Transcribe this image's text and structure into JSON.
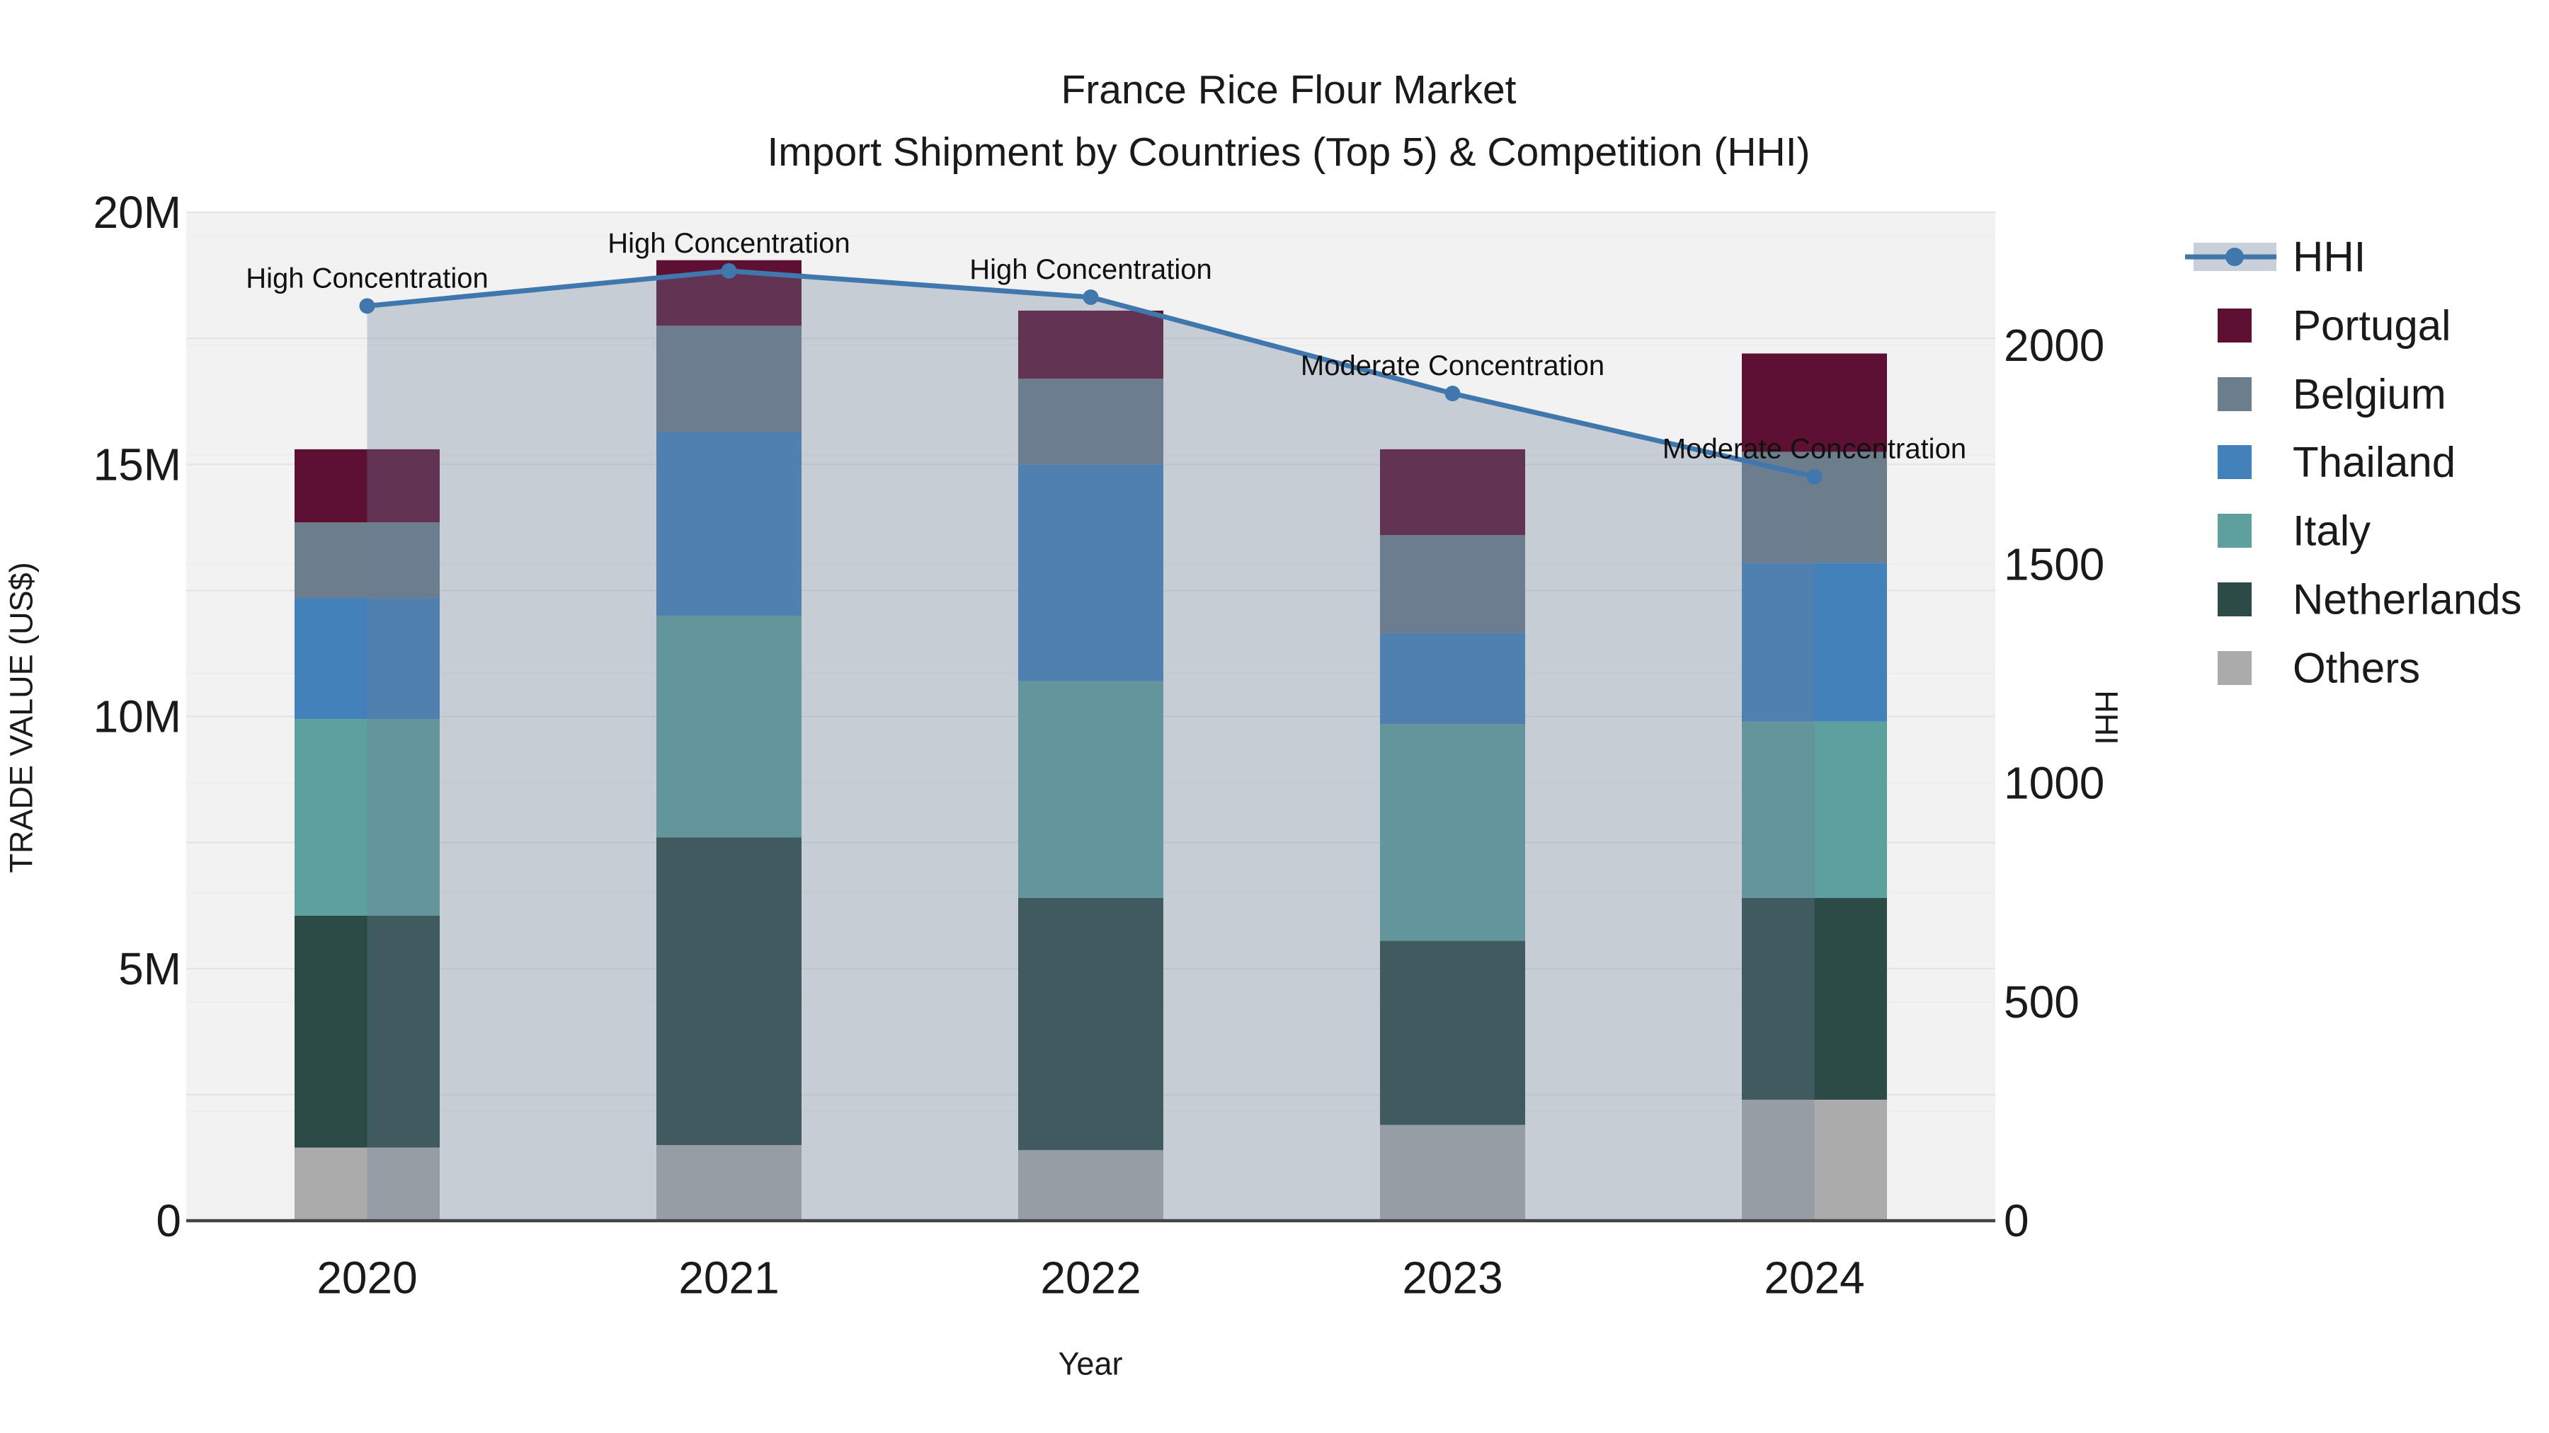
{
  "chart_data": {
    "type": "bar",
    "subtype": "stacked-bar-with-line",
    "title": "France Rice Flour Market",
    "subtitle": "Import Shipment by Countries (Top 5) & Competition (HHI)",
    "categories": [
      "2020",
      "2021",
      "2022",
      "2023",
      "2024"
    ],
    "bar_value_unit": "million US$",
    "stack_order_bottom_to_top": [
      "Others",
      "Netherlands",
      "Italy",
      "Thailand",
      "Belgium",
      "Portugal"
    ],
    "series": [
      {
        "name": "Others",
        "color": "#abatbab",
        "values": [
          1.45,
          1.5,
          1.4,
          1.9,
          2.4
        ]
      },
      {
        "name": "Netherlands",
        "color": "#2c4b46",
        "values": [
          4.6,
          6.1,
          5.0,
          3.65,
          4.0
        ]
      },
      {
        "name": "Italy",
        "color": "#5ea09e",
        "values": [
          3.9,
          4.4,
          4.3,
          4.3,
          3.5
        ]
      },
      {
        "name": "Thailand",
        "color": "#4381ba",
        "values": [
          2.4,
          3.65,
          4.3,
          1.8,
          3.15
        ]
      },
      {
        "name": "Belgium",
        "color": "#6c7d8c",
        "values": [
          1.5,
          2.1,
          1.7,
          1.95,
          2.2
        ]
      },
      {
        "name": "Portugal",
        "color": "#5e1033",
        "values": [
          1.45,
          1.3,
          1.35,
          1.7,
          1.95
        ]
      }
    ],
    "bar_totals_M": [
      15.3,
      19.05,
      18.05,
      15.3,
      17.2
    ],
    "line_series": {
      "name": "HHI",
      "values": [
        2090,
        2170,
        2110,
        1890,
        1700
      ],
      "color": "#4077ad",
      "area_fill": "rgba(109,128,152,0.32)"
    },
    "annotations": [
      {
        "year": "2020",
        "label": "High Concentration"
      },
      {
        "year": "2021",
        "label": "High Concentration"
      },
      {
        "year": "2022",
        "label": "High Concentration"
      },
      {
        "year": "2023",
        "label": "Moderate Concentration"
      },
      {
        "year": "2024",
        "label": "Moderate Concentration"
      }
    ],
    "axes": {
      "x_label": "Year",
      "y_left_label": "TRADE VALUE (US$)",
      "y_left_ticks": [
        "0",
        "5M",
        "10M",
        "15M",
        "20M"
      ],
      "y_left_tick_values_M": [
        0,
        5,
        10,
        15,
        20
      ],
      "y_left_range_M": [
        0,
        20
      ],
      "y_left_grid_step_M": 2.5,
      "y_right_label": "HHI",
      "y_right_ticks": [
        "0",
        "500",
        "1000",
        "1500",
        "2000"
      ],
      "y_right_tick_values": [
        0,
        500,
        1000,
        1500,
        2000
      ],
      "y_right_range": [
        0,
        2304
      ],
      "y_right_grid_step": 250,
      "grid": true
    },
    "legend": {
      "position": "outside-top-right",
      "items": [
        {
          "label": "HHI",
          "marker": "line-dot-on-band"
        },
        {
          "label": "Portugal",
          "marker": "square",
          "color": "#5e1033"
        },
        {
          "label": "Belgium",
          "marker": "square",
          "color": "#6c7d8c"
        },
        {
          "label": "Thailand",
          "marker": "square",
          "color": "#4381ba"
        },
        {
          "label": "Italy",
          "marker": "square",
          "color": "#5ea09e"
        },
        {
          "label": "Netherlands",
          "marker": "square",
          "color": "#2c4b46"
        },
        {
          "label": "Others",
          "marker": "square",
          "color": "#ababab"
        }
      ]
    },
    "style": {
      "plot_background": "#f2f2f2",
      "page_background": "#ffffff",
      "grid_major_color": "#e3e3e3",
      "grid_minor_color": "#ededed",
      "axis_spine_color": "#444444",
      "text_color": "#1a1a1a",
      "hhi_band_swatch": "#c9d0d9"
    }
  }
}
